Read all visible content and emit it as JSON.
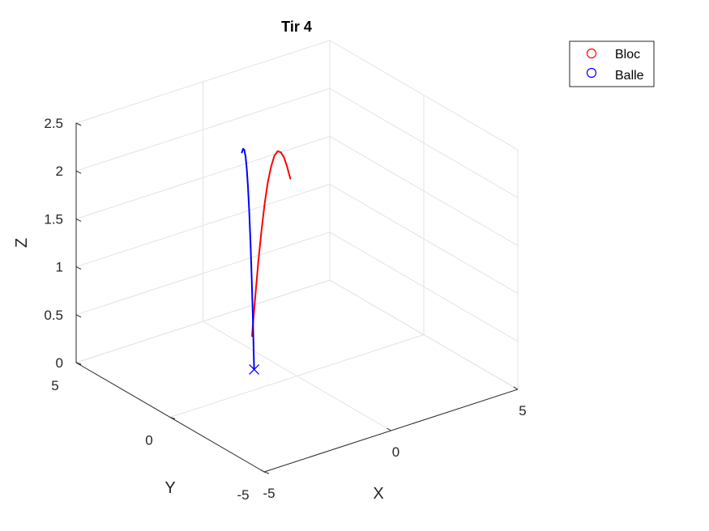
{
  "chart_data": {
    "type": "line",
    "projection": "3d",
    "title": "Tir 4",
    "xlabel": "X",
    "ylabel": "Y",
    "zlabel": "Z",
    "xlim": [
      -5,
      5
    ],
    "ylim": [
      -5,
      5
    ],
    "zlim": [
      0,
      2.5
    ],
    "xticks": [
      "-5",
      "0",
      "5"
    ],
    "yticks": [
      "-5",
      "0",
      "5"
    ],
    "zticks": [
      "0",
      "0.5",
      "1",
      "1.5",
      "2",
      "2.5"
    ],
    "grid": true,
    "legend_position": "top-right",
    "series": [
      {
        "name": "Bloc",
        "color": "#ff0000",
        "marker": "circle",
        "points": [
          [
            3.0,
            4.4,
            1.3
          ],
          [
            2.8,
            4.3,
            1.45
          ],
          [
            2.6,
            4.2,
            1.58
          ],
          [
            2.4,
            4.1,
            1.66
          ],
          [
            2.2,
            4.0,
            1.7
          ],
          [
            2.0,
            3.9,
            1.68
          ],
          [
            1.8,
            3.8,
            1.6
          ],
          [
            1.6,
            3.7,
            1.47
          ],
          [
            1.4,
            3.6,
            1.28
          ],
          [
            1.2,
            3.5,
            1.03
          ],
          [
            1.0,
            3.4,
            0.73
          ],
          [
            0.8,
            3.3,
            0.38
          ],
          [
            0.6,
            3.2,
            0.0
          ]
        ]
      },
      {
        "name": "Balle",
        "color": "#0000ff",
        "marker": "circle",
        "points": [
          [
            0.2,
            3.2,
            1.95
          ],
          [
            0.1,
            3.0,
            2.02
          ],
          [
            0.0,
            2.8,
            2.04
          ],
          [
            -0.1,
            2.6,
            2.0
          ],
          [
            -0.2,
            2.4,
            1.9
          ],
          [
            -0.3,
            2.2,
            1.74
          ],
          [
            -0.4,
            2.0,
            1.52
          ],
          [
            -0.5,
            1.8,
            1.24
          ],
          [
            -0.6,
            1.6,
            0.9
          ],
          [
            -0.7,
            1.4,
            0.5
          ],
          [
            -0.8,
            1.2,
            0.0
          ]
        ],
        "end_marker": "x"
      }
    ]
  }
}
